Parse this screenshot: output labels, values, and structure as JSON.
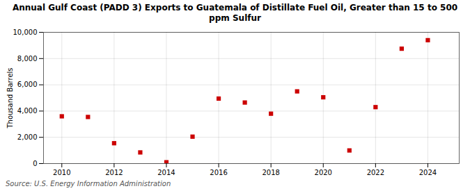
{
  "chart_data": {
    "type": "scatter",
    "title": "Annual Gulf Coast (PADD 3) Exports to Guatemala of Distillate Fuel Oil, Greater than 15 to 500\nppm Sulfur",
    "ylabel": "Thousand Barrels",
    "source": "Source: U.S. Energy Information Administration",
    "x": [
      2010,
      2011,
      2012,
      2013,
      2014,
      2015,
      2016,
      2017,
      2018,
      2019,
      2020,
      2021,
      2022,
      2023,
      2024
    ],
    "values": [
      3600,
      3550,
      1550,
      850,
      100,
      2050,
      4950,
      4650,
      3800,
      5500,
      5050,
      1000,
      4300,
      8750,
      9400
    ],
    "color": "#cc0000",
    "marker": "square",
    "xlim": [
      2009.3,
      2025.2
    ],
    "xticks": [
      2010,
      2012,
      2014,
      2016,
      2018,
      2020,
      2022,
      2024
    ],
    "ylim": [
      0,
      10000
    ],
    "yticks": [
      0,
      {
        "value": 2000,
        "label": "2,000"
      },
      {
        "value": 4000,
        "label": "4,000"
      },
      {
        "value": 6000,
        "label": "6,000"
      },
      {
        "value": 8000,
        "label": "8,000"
      },
      {
        "value": 10000,
        "label": "10,000"
      }
    ],
    "grid": true
  }
}
